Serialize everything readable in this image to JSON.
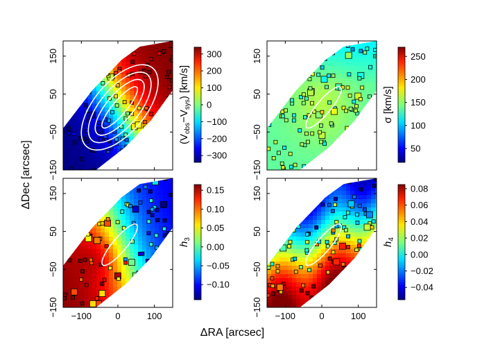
{
  "chart_data": {
    "type": "heatmap",
    "figure": {
      "xlabel": "ΔRA [arcsec]",
      "ylabel": "ΔDec [arcsec]"
    },
    "panels": [
      {
        "id": "velocity",
        "quantity": "V_obs - V_sys",
        "cbar_label_parts": [
          "(V",
          "obs",
          "−V",
          "sys",
          ") [km/s]"
        ],
        "cbar_range": [
          -340,
          340
        ],
        "cbar_ticks": [
          300,
          200,
          100,
          0,
          -100,
          -200,
          -300
        ],
        "cbar_ticklabels": [
          "300",
          "200",
          "100",
          "0",
          "−100",
          "−200",
          "−300"
        ],
        "xlim": [
          -150,
          150
        ],
        "ylim": [
          -150,
          190
        ],
        "y_ticks": [
          150,
          50,
          -50,
          -150
        ],
        "y_ticklabels": [
          "150",
          "50",
          "−50",
          "−150"
        ],
        "x_ticks": [
          -100,
          0,
          100
        ],
        "x_ticklabels": [],
        "show_ylabels": true,
        "contours": 4
      },
      {
        "id": "dispersion",
        "quantity": "sigma",
        "cbar_label": "σ [km/s]",
        "cbar_range": [
          20,
          270
        ],
        "cbar_ticks": [
          250,
          200,
          150,
          100,
          50
        ],
        "cbar_ticklabels": [
          "250",
          "200",
          "150",
          "100",
          "50"
        ],
        "xlim": [
          -150,
          150
        ],
        "ylim": [
          -150,
          190
        ],
        "y_ticks": [
          150,
          50,
          -50,
          -150
        ],
        "y_ticklabels": [
          "150",
          "50",
          "−50",
          "−150"
        ],
        "x_ticks": [
          -100,
          0,
          100
        ],
        "x_ticklabels": [],
        "show_ylabels": true,
        "contours": 1
      },
      {
        "id": "h3",
        "quantity": "h3",
        "cbar_label": "h",
        "cbar_label_sub": "3",
        "cbar_range": [
          -0.14,
          0.165
        ],
        "cbar_ticks": [
          0.15,
          0.1,
          0.05,
          0.0,
          -0.05,
          -0.1
        ],
        "cbar_ticklabels": [
          "0.15",
          "0.10",
          "0.05",
          "0.00",
          "−0.05",
          "−0.10"
        ],
        "xlim": [
          -150,
          150
        ],
        "ylim": [
          -150,
          190
        ],
        "y_ticks": [
          150,
          50,
          -50,
          -150
        ],
        "y_ticklabels": [
          "150",
          "50",
          "−50",
          "−150"
        ],
        "x_ticks": [
          -100,
          0,
          100
        ],
        "x_ticklabels": [
          "−100",
          "0",
          "100"
        ],
        "show_ylabels": true,
        "contours": 1
      },
      {
        "id": "h4",
        "quantity": "h4",
        "cbar_label": "h",
        "cbar_label_sub": "4",
        "cbar_range": [
          -0.055,
          0.085
        ],
        "cbar_ticks": [
          0.08,
          0.06,
          0.04,
          0.02,
          0.0,
          -0.02,
          -0.04
        ],
        "cbar_ticklabels": [
          "0.08",
          "0.06",
          "0.04",
          "0.02",
          "0.00",
          "−0.02",
          "−0.04"
        ],
        "xlim": [
          -150,
          150
        ],
        "ylim": [
          -150,
          190
        ],
        "y_ticks": [
          150,
          50,
          -50,
          -150
        ],
        "y_ticklabels": [
          "150",
          "50",
          "−50",
          "−150"
        ],
        "x_ticks": [
          -100,
          0,
          100
        ],
        "x_ticklabels": [
          "−100",
          "0",
          "100"
        ],
        "show_ylabels": true,
        "contours": 1
      }
    ]
  }
}
